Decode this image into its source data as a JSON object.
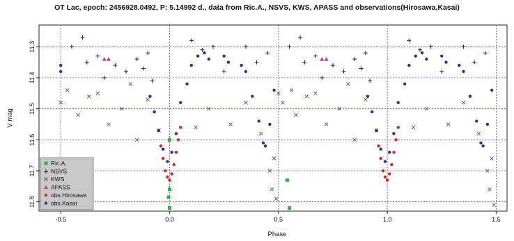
{
  "chart_data": {
    "type": "scatter",
    "title": "OT Lac, epoch: 2456928.0492, P: 5.14992 d., data from Ric.A., NSVS, KWS, APASS and observations(Hirosawa,Kasai)",
    "xlabel": "Phase",
    "ylabel": "V mag",
    "xlim": [
      -0.6,
      1.55
    ],
    "ylim": [
      11.83,
      11.23
    ],
    "y_reversed": true,
    "x_ticks": [
      -0.5,
      0.0,
      0.5,
      1.0,
      1.5
    ],
    "x_tick_labels": [
      "-0.5",
      "0.0",
      "0.5",
      "1.0",
      "1.5"
    ],
    "y_ticks": [
      11.3,
      11.4,
      11.5,
      11.6,
      11.7,
      11.8
    ],
    "y_tick_labels": [
      "11.3",
      "11.4",
      "11.5",
      "11.6",
      "11.7",
      "11.8"
    ],
    "grid": true,
    "grid_color": "#3333cc",
    "legend_position": "bottom-left",
    "series": [
      {
        "name": "Ric.A.",
        "marker": "square",
        "color": "#22bb33",
        "points": [
          [
            0.0,
            11.6
          ],
          [
            0.0,
            11.82
          ],
          [
            0.54,
            11.73
          ],
          [
            0.55,
            11.82
          ],
          [
            0.0,
            11.76
          ],
          [
            -0.005,
            11.785
          ]
        ]
      },
      {
        "name": "NSVS",
        "marker": "plus",
        "color": "#222222",
        "points": [
          [
            -0.45,
            11.3
          ],
          [
            -0.4,
            11.27
          ],
          [
            -0.38,
            11.35
          ],
          [
            -0.33,
            11.33
          ],
          [
            -0.3,
            11.4
          ],
          [
            -0.25,
            11.36
          ],
          [
            -0.2,
            11.38
          ],
          [
            -0.15,
            11.34
          ],
          [
            -0.12,
            11.37
          ],
          [
            -0.1,
            11.32
          ],
          [
            -0.08,
            11.41
          ],
          [
            0.1,
            11.28
          ],
          [
            0.15,
            11.31
          ],
          [
            0.2,
            11.3
          ],
          [
            0.25,
            11.38
          ],
          [
            0.35,
            11.3
          ],
          [
            0.4,
            11.35
          ],
          [
            0.45,
            11.32
          ],
          [
            0.55,
            11.3
          ],
          [
            0.6,
            11.27
          ],
          [
            0.62,
            11.35
          ],
          [
            0.67,
            11.33
          ],
          [
            0.7,
            11.4
          ],
          [
            0.75,
            11.36
          ],
          [
            0.8,
            11.38
          ],
          [
            0.85,
            11.34
          ],
          [
            0.88,
            11.37
          ],
          [
            0.9,
            11.32
          ],
          [
            0.92,
            11.41
          ],
          [
            1.1,
            11.28
          ],
          [
            1.15,
            11.31
          ],
          [
            1.2,
            11.3
          ],
          [
            1.25,
            11.38
          ],
          [
            1.35,
            11.3
          ],
          [
            1.4,
            11.35
          ],
          [
            1.45,
            11.32
          ]
        ]
      },
      {
        "name": "KWS",
        "marker": "x",
        "color": "#555555",
        "points": [
          [
            -0.5,
            11.48
          ],
          [
            -0.47,
            11.44
          ],
          [
            -0.42,
            11.52
          ],
          [
            -0.37,
            11.46
          ],
          [
            -0.33,
            11.45
          ],
          [
            -0.28,
            11.55
          ],
          [
            -0.22,
            11.5
          ],
          [
            -0.18,
            11.42
          ],
          [
            -0.15,
            11.6
          ],
          [
            -0.1,
            11.47
          ],
          [
            -0.05,
            11.57
          ],
          [
            0.12,
            11.56
          ],
          [
            0.18,
            11.5
          ],
          [
            0.28,
            11.55
          ],
          [
            0.35,
            11.48
          ],
          [
            0.42,
            11.58
          ],
          [
            0.46,
            11.7
          ],
          [
            0.47,
            11.76
          ],
          [
            0.48,
            11.66
          ],
          [
            0.5,
            11.45
          ],
          [
            0.52,
            11.48
          ],
          [
            0.56,
            11.44
          ],
          [
            0.58,
            11.52
          ],
          [
            0.63,
            11.46
          ],
          [
            0.67,
            11.45
          ],
          [
            0.72,
            11.55
          ],
          [
            0.78,
            11.5
          ],
          [
            0.82,
            11.42
          ],
          [
            0.85,
            11.6
          ],
          [
            0.9,
            11.47
          ],
          [
            0.95,
            11.57
          ],
          [
            1.12,
            11.56
          ],
          [
            1.18,
            11.5
          ],
          [
            1.28,
            11.55
          ],
          [
            1.35,
            11.48
          ],
          [
            1.42,
            11.58
          ],
          [
            1.46,
            11.7
          ],
          [
            1.47,
            11.76
          ],
          [
            1.48,
            11.66
          ],
          [
            1.49,
            11.81
          ],
          [
            0.49,
            11.79
          ]
        ]
      },
      {
        "name": "APASS",
        "marker": "triangle",
        "color": "#cc3399",
        "points": [
          [
            -0.3,
            11.34
          ],
          [
            -0.28,
            11.34
          ],
          [
            0.7,
            11.34
          ],
          [
            0.72,
            11.34
          ]
        ]
      },
      {
        "name": "obs.Hirosawa",
        "marker": "dot",
        "color": "#dd2222",
        "points": [
          [
            -0.04,
            11.62
          ],
          [
            -0.03,
            11.66
          ],
          [
            -0.02,
            11.7
          ],
          [
            -0.01,
            11.72
          ],
          [
            0.0,
            11.73
          ],
          [
            0.01,
            11.71
          ],
          [
            0.02,
            11.68
          ],
          [
            0.03,
            11.64
          ],
          [
            0.04,
            11.6
          ],
          [
            0.05,
            11.56
          ],
          [
            0.96,
            11.62
          ],
          [
            0.97,
            11.66
          ],
          [
            0.98,
            11.7
          ],
          [
            0.99,
            11.72
          ],
          [
            1.0,
            11.73
          ],
          [
            1.01,
            11.71
          ],
          [
            1.02,
            11.68
          ],
          [
            1.03,
            11.64
          ],
          [
            1.04,
            11.6
          ],
          [
            1.05,
            11.56
          ]
        ]
      },
      {
        "name": "obs.Kasai",
        "marker": "dot",
        "color": "#2233aa",
        "points": [
          [
            -0.5,
            11.36
          ],
          [
            -0.5,
            11.38
          ],
          [
            -0.09,
            11.46
          ],
          [
            -0.07,
            11.51
          ],
          [
            -0.05,
            11.57
          ],
          [
            -0.03,
            11.63
          ],
          [
            -0.01,
            11.67
          ],
          [
            0.01,
            11.64
          ],
          [
            0.03,
            11.58
          ],
          [
            0.05,
            11.48
          ],
          [
            0.08,
            11.42
          ],
          [
            0.1,
            11.36
          ],
          [
            0.13,
            11.33
          ],
          [
            0.16,
            11.32
          ],
          [
            0.18,
            11.34
          ],
          [
            0.25,
            11.33
          ],
          [
            0.27,
            11.35
          ],
          [
            0.33,
            11.36
          ],
          [
            0.35,
            11.38
          ],
          [
            0.38,
            11.46
          ],
          [
            0.41,
            11.54
          ],
          [
            0.43,
            11.61
          ],
          [
            0.44,
            11.62
          ],
          [
            0.46,
            11.55
          ],
          [
            0.48,
            11.44
          ],
          [
            0.91,
            11.46
          ],
          [
            0.93,
            11.51
          ],
          [
            0.95,
            11.57
          ],
          [
            0.97,
            11.63
          ],
          [
            0.99,
            11.67
          ],
          [
            1.01,
            11.64
          ],
          [
            1.03,
            11.58
          ],
          [
            1.05,
            11.48
          ],
          [
            1.08,
            11.42
          ],
          [
            1.1,
            11.36
          ],
          [
            1.13,
            11.33
          ],
          [
            1.16,
            11.32
          ],
          [
            1.18,
            11.34
          ],
          [
            1.25,
            11.33
          ],
          [
            1.27,
            11.35
          ],
          [
            1.33,
            11.36
          ],
          [
            1.35,
            11.38
          ],
          [
            1.38,
            11.46
          ],
          [
            1.41,
            11.54
          ],
          [
            1.43,
            11.61
          ],
          [
            1.44,
            11.62
          ],
          [
            1.46,
            11.55
          ],
          [
            1.48,
            11.44
          ]
        ]
      }
    ]
  }
}
